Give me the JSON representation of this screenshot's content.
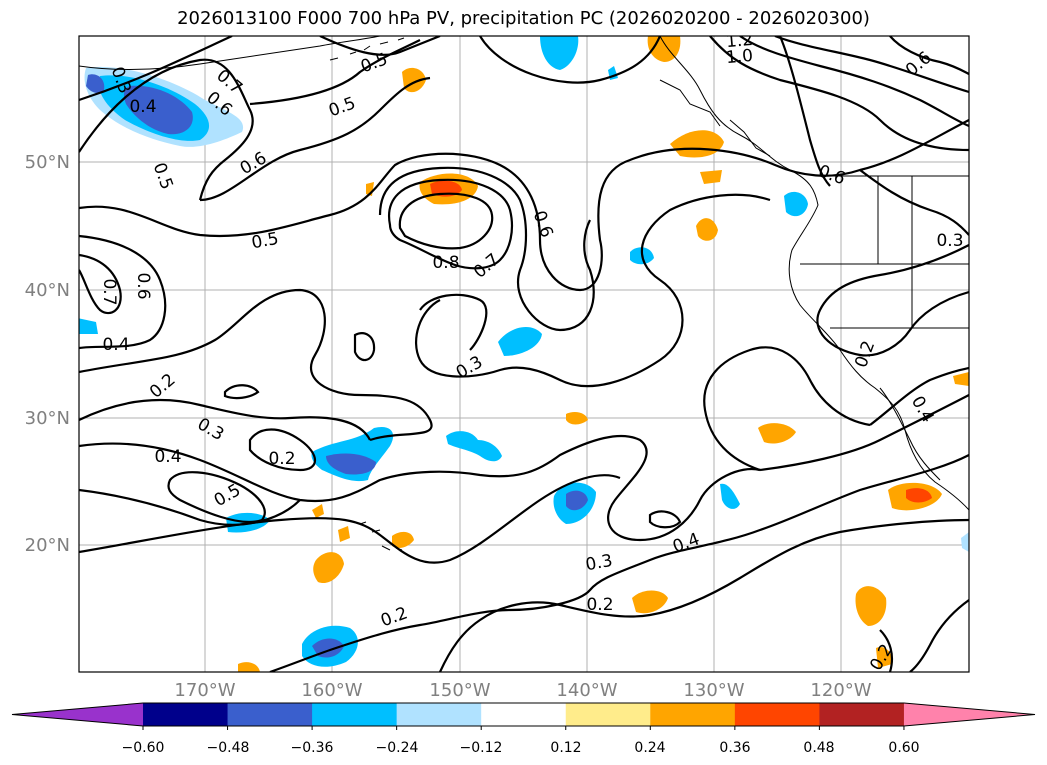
{
  "title": "2026013100 F000 700 hPa PV, precipitation PC (2026020200 - 2026020300)",
  "lat_labels": [
    "50°N",
    "40°N",
    "30°N",
    "20°N"
  ],
  "lon_labels": [
    "170°W",
    "160°W",
    "150°W",
    "140°W",
    "130°W",
    "120°W"
  ],
  "contour_labels": [
    "0.4",
    "0.5",
    "0.6",
    "0.7",
    "0.8",
    "0.7",
    "0.6",
    "0.5",
    "0.6",
    "0.5",
    "0.7",
    "0.4",
    "0.2",
    "0.3",
    "0.4",
    "0.2",
    "0.5",
    "0.3",
    "0.3",
    "0.2",
    "0.2",
    "0.4",
    "0.3",
    "1.0",
    "1.2",
    "0.6",
    "0.3",
    "0.2",
    "0.4",
    "0.2",
    "0.6",
    "0.6",
    "0.5"
  ],
  "colorbar": {
    "ticks": [
      "−0.60",
      "−0.48",
      "−0.36",
      "−0.24",
      "−0.12",
      "0.12",
      "0.24",
      "0.36",
      "0.48",
      "0.60"
    ],
    "colors": [
      "#9932cc",
      "#00008b",
      "#3a5fcd",
      "#00bfff",
      "#b0e2ff",
      "#ffffff",
      "#ffec8b",
      "#ffa500",
      "#ff4500",
      "#b22222",
      "#ff82ab"
    ]
  }
}
